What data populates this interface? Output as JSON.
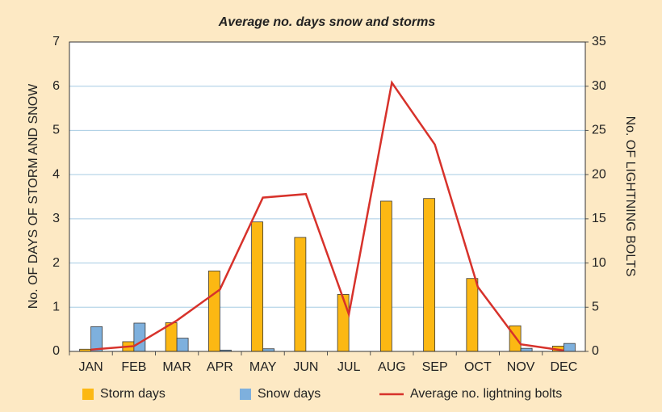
{
  "chart_data": {
    "type": "bar",
    "title": "Average no. days snow and storms",
    "y_label": "No. OF DAYS OF STORM AND SNOW",
    "y2_label": "No. OF LIGHTNING BOLTS",
    "categories": [
      "JAN",
      "FEB",
      "MAR",
      "APR",
      "MAY",
      "JUN",
      "JUL",
      "AUG",
      "SEP",
      "OCT",
      "NOV",
      "DEC"
    ],
    "series": [
      {
        "name": "Storm days",
        "type": "bar",
        "color": "#fcb813",
        "values": [
          0.05,
          0.22,
          0.65,
          1.82,
          2.93,
          2.58,
          1.29,
          3.4,
          3.46,
          1.65,
          0.58,
          0.12
        ]
      },
      {
        "name": "Snow days",
        "type": "bar",
        "color": "#7eb0dd",
        "values": [
          0.56,
          0.64,
          0.3,
          0.03,
          0.06,
          0,
          0,
          0,
          0,
          0,
          0.07,
          0.18
        ]
      },
      {
        "name": "Average no. lightning bolts",
        "type": "line",
        "axis": "y2",
        "color": "#d7322b",
        "values": [
          0.2,
          0.6,
          3.5,
          7,
          17.4,
          17.8,
          4.2,
          30.4,
          23.4,
          7.3,
          0.8,
          0.1
        ]
      }
    ],
    "ylim": [
      0,
      7
    ],
    "yticks": [
      0,
      1,
      2,
      3,
      4,
      5,
      6,
      7
    ],
    "y2lim": [
      0,
      35
    ],
    "y2ticks": [
      0,
      5,
      10,
      15,
      20,
      25,
      30,
      35
    ],
    "grid": true
  }
}
